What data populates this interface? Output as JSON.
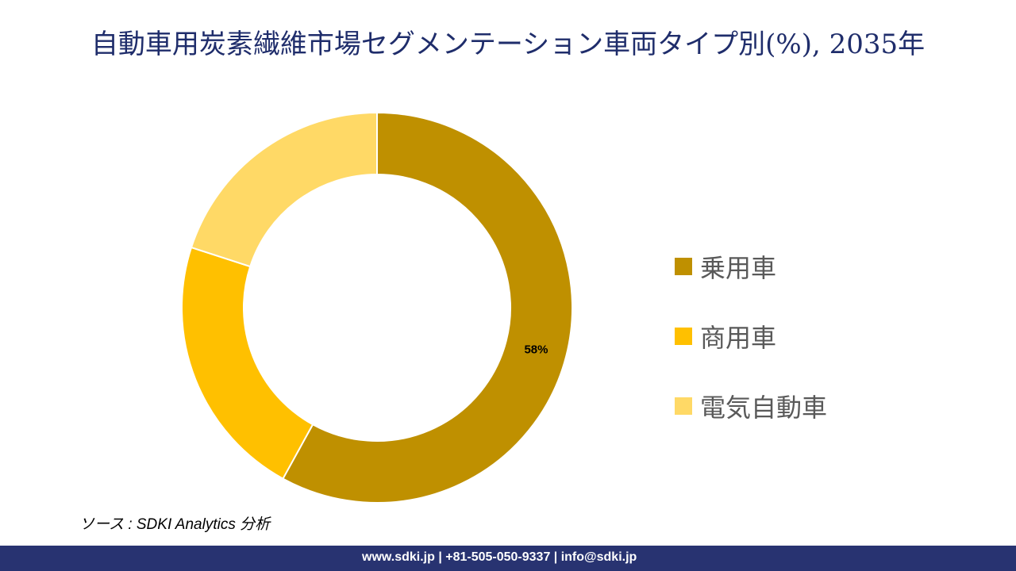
{
  "chart_data": {
    "type": "pie",
    "donut": true,
    "title": "自動車用炭素繊維市場セグメンテーション車両タイプ別(%), 2035年",
    "categories": [
      "乗用車",
      "商用車",
      "電気自動車"
    ],
    "values": [
      58,
      22,
      20
    ],
    "data_labels": [
      "58%",
      "",
      ""
    ],
    "colors": [
      "#BF9000",
      "#FFC000",
      "#FFD966"
    ],
    "legend_position": "right"
  },
  "source": "ソース : SDKI Analytics 分析",
  "footer": "www.sdki.jp | +81-505-050-9337 | info@sdki.jp"
}
